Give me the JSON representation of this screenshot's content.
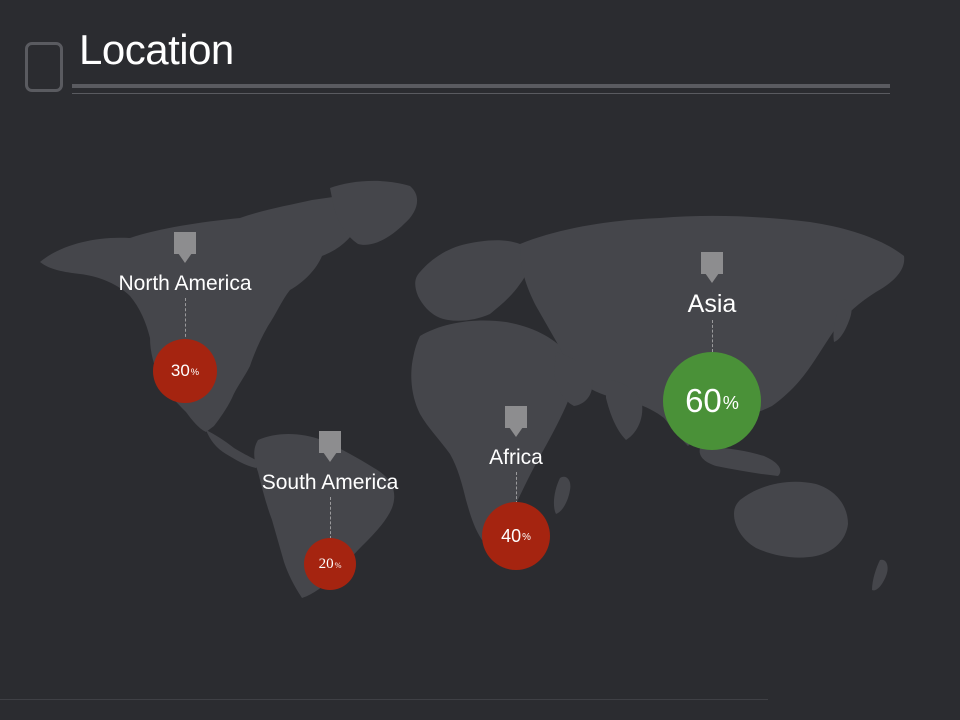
{
  "title": "Location",
  "colors": {
    "background": "#2b2c30",
    "land": "#45464b",
    "low": "#a52410",
    "high": "#4a9138",
    "pin": "#8d8d8f"
  },
  "chart_data": {
    "type": "table",
    "regions": [
      {
        "name": "North America",
        "value": "30",
        "unit": "%",
        "level": "low"
      },
      {
        "name": "South America",
        "value": "20",
        "unit": "%",
        "level": "low"
      },
      {
        "name": "Africa",
        "value": "40",
        "unit": "%",
        "level": "low"
      },
      {
        "name": "Asia",
        "value": "60",
        "unit": "%",
        "level": "high"
      }
    ]
  }
}
